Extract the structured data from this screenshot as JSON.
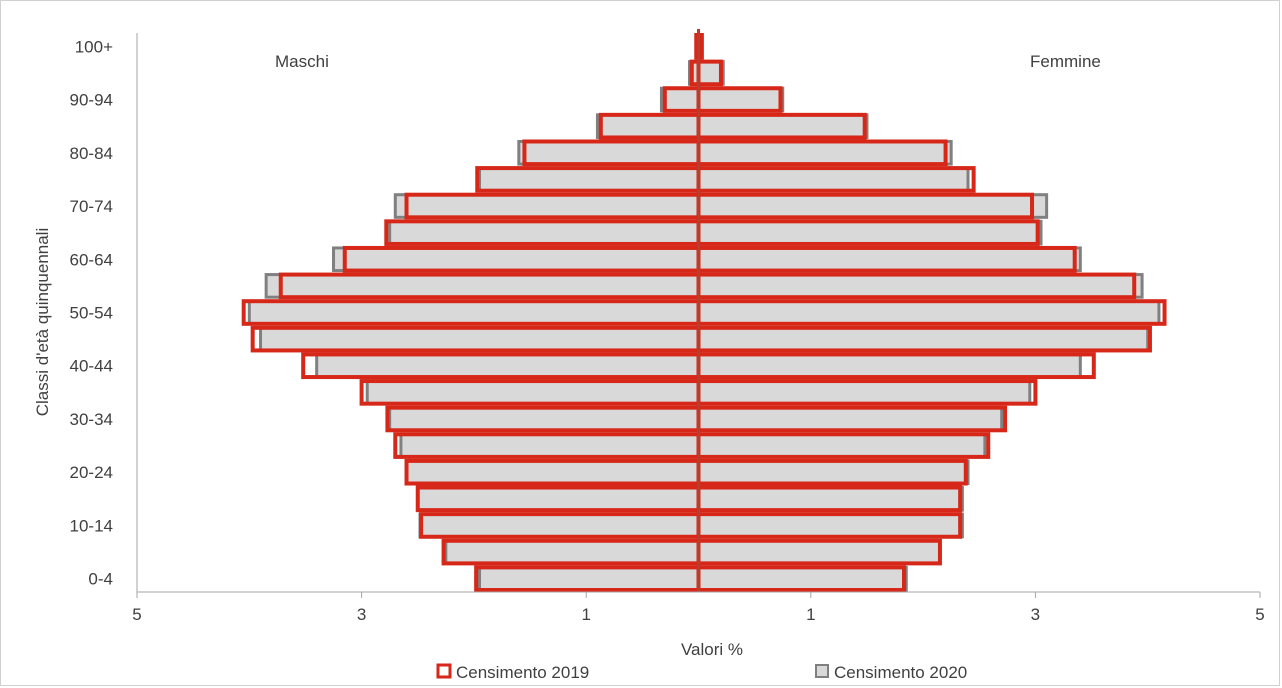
{
  "chart_data": {
    "type": "bar",
    "orientation": "horizontal",
    "subtype": "population-pyramid",
    "categories": [
      "0-4",
      "5-9",
      "10-14",
      "15-19",
      "20-24",
      "25-29",
      "30-34",
      "35-39",
      "40-44",
      "45-49",
      "50-54",
      "55-59",
      "60-64",
      "65-69",
      "70-74",
      "75-79",
      "80-84",
      "85-89",
      "90-94",
      "95-99",
      "100+"
    ],
    "tick_labels": [
      "0-4",
      "10-14",
      "20-24",
      "30-34",
      "40-44",
      "50-54",
      "60-64",
      "70-74",
      "80-84",
      "90-94",
      "100+"
    ],
    "ylabel": "Classi d'età quinquennali",
    "xlabel": "Valori %",
    "xlim": [
      -5,
      5
    ],
    "x_ticks": [
      -5,
      -3,
      -1,
      1,
      3,
      5
    ],
    "x_tick_labels": [
      "5",
      "3",
      "1",
      "1",
      "3",
      "5"
    ],
    "side_labels": {
      "left": "Maschi",
      "right": "Femmine"
    },
    "series": [
      {
        "name": "Censimento 2020",
        "color": "#808080",
        "fill": "#d9d9d9",
        "males": [
          1.95,
          2.25,
          2.48,
          2.5,
          2.6,
          2.65,
          2.75,
          2.95,
          3.4,
          3.9,
          4.0,
          3.85,
          3.25,
          2.75,
          2.7,
          1.95,
          1.6,
          0.9,
          0.33,
          0.08,
          0.02
        ],
        "females": [
          1.85,
          2.15,
          2.35,
          2.35,
          2.4,
          2.55,
          2.7,
          2.95,
          3.4,
          4.0,
          4.1,
          3.95,
          3.4,
          3.05,
          3.1,
          2.4,
          2.25,
          1.5,
          0.75,
          0.22,
          0.03
        ]
      },
      {
        "name": "Censimento 2019",
        "color": "#d62718",
        "males": [
          1.98,
          2.27,
          2.47,
          2.5,
          2.6,
          2.7,
          2.77,
          3.0,
          3.52,
          3.97,
          4.05,
          3.72,
          3.15,
          2.78,
          2.6,
          1.97,
          1.55,
          0.87,
          0.3,
          0.06,
          0.02
        ],
        "females": [
          1.83,
          2.15,
          2.33,
          2.33,
          2.38,
          2.58,
          2.73,
          3.0,
          3.52,
          4.02,
          4.15,
          3.88,
          3.35,
          3.02,
          2.97,
          2.45,
          2.2,
          1.48,
          0.73,
          0.2,
          0.03
        ]
      }
    ],
    "legend": {
      "placement": "bottom",
      "entries": [
        "Censimento 2019",
        "Censimento 2020"
      ]
    },
    "grid": false
  }
}
